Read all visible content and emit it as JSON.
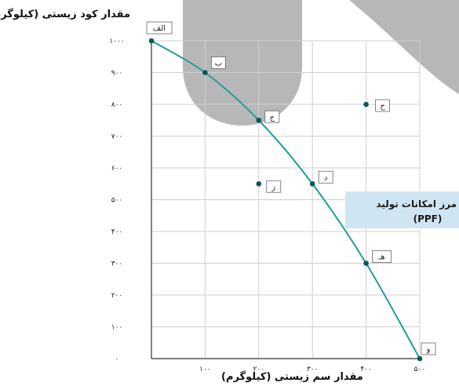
{
  "chart_data": {
    "type": "line",
    "xlabel": "مقدار سم زیستی (کیلوگرم)",
    "ylabel": "مقدار کود زیستی (کیلوگرم)",
    "xlim": [
      0,
      500
    ],
    "ylim": [
      0,
      1000
    ],
    "x_ticks": [
      {
        "value": 100,
        "label": "۱۰۰"
      },
      {
        "value": 200,
        "label": "۲۰۰"
      },
      {
        "value": 300,
        "label": "۳۰۰"
      },
      {
        "value": 400,
        "label": "۴۰۰"
      },
      {
        "value": 500,
        "label": "۵۰۰"
      }
    ],
    "y_ticks": [
      {
        "value": 0,
        "label": "۰"
      },
      {
        "value": 100,
        "label": "۱۰۰"
      },
      {
        "value": 200,
        "label": "۲۰۰"
      },
      {
        "value": 300,
        "label": "۳۰۰"
      },
      {
        "value": 400,
        "label": "۴۰۰"
      },
      {
        "value": 500,
        "label": "۵۰۰"
      },
      {
        "value": 600,
        "label": "۶۰۰"
      },
      {
        "value": 700,
        "label": "۷۰۰"
      },
      {
        "value": 800,
        "label": "۸۰۰"
      },
      {
        "value": 900,
        "label": "۹۰۰"
      },
      {
        "value": 1000,
        "label": "۱۰۰۰"
      }
    ],
    "grid": true,
    "curve_label": [
      "مرز امکانات تولید",
      "(PPF)"
    ],
    "curve_color": "#1f9f9a",
    "point_color": "#0c5a52",
    "label_box_color": "#cfe6f2",
    "series": [
      {
        "points": [
          {
            "label": "الف",
            "x": 0,
            "y": 1000
          },
          {
            "label": "ب",
            "x": 100,
            "y": 900
          },
          {
            "label": "ج",
            "x": 200,
            "y": 750
          },
          {
            "label": "د",
            "x": 300,
            "y": 550
          },
          {
            "label": "هـ",
            "x": 400,
            "y": 300
          },
          {
            "label": "و",
            "x": 500,
            "y": 0
          }
        ]
      }
    ],
    "off_curve_points": [
      {
        "label": "ح",
        "x": 400,
        "y": 800
      },
      {
        "label": "ز",
        "x": 200,
        "y": 550
      }
    ]
  }
}
